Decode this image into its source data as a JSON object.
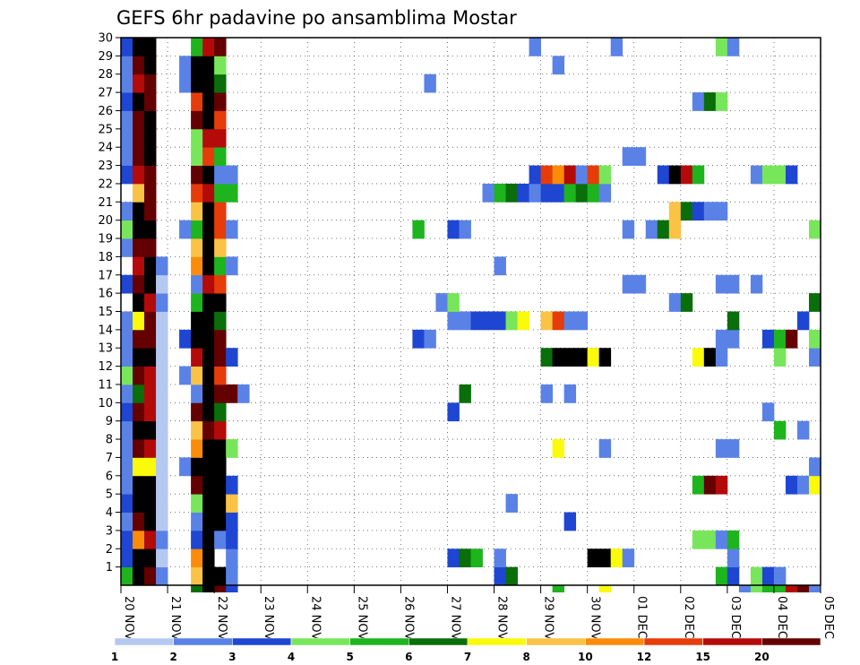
{
  "chart_data": {
    "type": "heatmap",
    "title": "GEFS 6hr padavine po ansamblima Mostar",
    "x_categories": [
      "20 NOV",
      "21 NOV",
      "22 NOV",
      "23 NOV",
      "24 NOV",
      "25 NOV",
      "26 NOV",
      "27 NOV",
      "28 NOV",
      "29 NOV",
      "30 NOV",
      "01 DEC",
      "02 DEC",
      "03 DEC",
      "04 DEC",
      "05 DEC"
    ],
    "y_ticks": [
      1,
      2,
      3,
      4,
      5,
      6,
      7,
      8,
      9,
      10,
      11,
      12,
      13,
      14,
      15,
      16,
      17,
      18,
      19,
      20,
      21,
      22,
      23,
      24,
      25,
      26,
      27,
      28,
      29,
      30
    ],
    "xlim": [
      0,
      60
    ],
    "ylim": [
      0,
      30
    ],
    "grid": true,
    "legend_position": "bottom",
    "legend": [
      {
        "label": "1",
        "color": "#b4c8f0"
      },
      {
        "label": "2",
        "color": "#5a82e6"
      },
      {
        "label": "3",
        "color": "#1e46d2"
      },
      {
        "label": "4",
        "color": "#78e65a"
      },
      {
        "label": "5",
        "color": "#1eb41e"
      },
      {
        "label": "6",
        "color": "#0a6e0a"
      },
      {
        "label": "7",
        "color": "#fafa0a"
      },
      {
        "label": "8",
        "color": "#fac346"
      },
      {
        "label": "10",
        "color": "#fa8c0a"
      },
      {
        "label": "12",
        "color": "#e63c0a"
      },
      {
        "label": "15",
        "color": "#b40a0a"
      },
      {
        "label": "20",
        "color": "#640000"
      }
    ],
    "cells": [
      [
        1,
        1,
        4
      ],
      [
        1,
        2,
        2
      ],
      [
        1,
        3,
        2
      ],
      [
        1,
        4,
        1
      ],
      [
        1,
        5,
        2
      ],
      [
        1,
        6,
        1
      ],
      [
        1,
        7,
        1
      ],
      [
        1,
        8,
        1
      ],
      [
        1,
        9,
        1
      ],
      [
        1,
        10,
        2
      ],
      [
        1,
        11,
        1
      ],
      [
        1,
        12,
        3
      ],
      [
        1,
        13,
        1
      ],
      [
        1,
        14,
        1
      ],
      [
        1,
        15,
        1
      ],
      [
        1,
        17,
        2
      ],
      [
        1,
        19,
        1
      ],
      [
        1,
        20,
        3
      ],
      [
        1,
        21,
        1
      ],
      [
        1,
        23,
        2
      ],
      [
        1,
        24,
        1
      ],
      [
        1,
        25,
        1
      ],
      [
        1,
        26,
        1
      ],
      [
        1,
        27,
        2
      ],
      [
        1,
        28,
        1
      ],
      [
        1,
        29,
        1
      ],
      [
        1,
        30,
        2
      ],
      [
        2,
        1,
        12
      ],
      [
        2,
        2,
        12
      ],
      [
        2,
        3,
        8
      ],
      [
        2,
        4,
        11
      ],
      [
        2,
        5,
        12
      ],
      [
        2,
        6,
        12
      ],
      [
        2,
        7,
        6
      ],
      [
        2,
        8,
        11
      ],
      [
        2,
        9,
        12
      ],
      [
        2,
        10,
        11
      ],
      [
        2,
        11,
        5
      ],
      [
        2,
        12,
        11
      ],
      [
        2,
        13,
        12
      ],
      [
        2,
        14,
        11
      ],
      [
        2,
        15,
        6
      ],
      [
        2,
        16,
        12
      ],
      [
        2,
        17,
        11
      ],
      [
        2,
        18,
        10
      ],
      [
        2,
        19,
        11
      ],
      [
        2,
        20,
        12
      ],
      [
        2,
        21,
        12
      ],
      [
        2,
        22,
        7
      ],
      [
        2,
        23,
        10
      ],
      [
        2,
        24,
        11
      ],
      [
        2,
        25,
        11
      ],
      [
        2,
        26,
        11
      ],
      [
        2,
        27,
        12
      ],
      [
        2,
        28,
        10
      ],
      [
        2,
        29,
        11
      ],
      [
        2,
        30,
        12
      ],
      [
        3,
        1,
        11
      ],
      [
        3,
        2,
        12
      ],
      [
        3,
        3,
        10
      ],
      [
        3,
        4,
        12
      ],
      [
        3,
        5,
        12
      ],
      [
        3,
        6,
        12
      ],
      [
        3,
        7,
        6
      ],
      [
        3,
        8,
        10
      ],
      [
        3,
        9,
        12
      ],
      [
        3,
        10,
        10
      ],
      [
        3,
        11,
        10
      ],
      [
        3,
        12,
        10
      ],
      [
        3,
        13,
        12
      ],
      [
        3,
        14,
        11
      ],
      [
        3,
        15,
        11
      ],
      [
        3,
        16,
        10
      ],
      [
        3,
        17,
        12
      ],
      [
        3,
        18,
        12
      ],
      [
        3,
        19,
        11
      ],
      [
        3,
        20,
        12
      ],
      [
        3,
        21,
        11
      ],
      [
        3,
        22,
        11
      ],
      [
        3,
        23,
        11
      ],
      [
        3,
        24,
        12
      ],
      [
        3,
        25,
        12
      ],
      [
        3,
        26,
        12
      ],
      [
        3,
        27,
        11
      ],
      [
        3,
        28,
        11
      ],
      [
        3,
        29,
        12
      ],
      [
        3,
        30,
        12
      ],
      [
        4,
        1,
        1
      ],
      [
        4,
        2,
        0
      ],
      [
        4,
        3,
        1
      ],
      [
        4,
        4,
        0
      ],
      [
        4,
        5,
        0
      ],
      [
        4,
        6,
        0
      ],
      [
        4,
        7,
        0
      ],
      [
        4,
        8,
        0
      ],
      [
        4,
        9,
        0
      ],
      [
        4,
        10,
        0
      ],
      [
        4,
        11,
        0
      ],
      [
        4,
        12,
        0
      ],
      [
        4,
        13,
        0
      ],
      [
        4,
        14,
        0
      ],
      [
        4,
        15,
        0
      ],
      [
        4,
        16,
        1
      ],
      [
        4,
        17,
        0
      ],
      [
        4,
        18,
        1
      ],
      [
        6,
        7,
        1
      ],
      [
        6,
        12,
        1
      ],
      [
        6,
        14,
        2
      ],
      [
        6,
        20,
        1
      ],
      [
        6,
        28,
        1
      ],
      [
        6,
        29,
        1
      ],
      [
        7,
        1,
        7
      ],
      [
        7,
        2,
        8
      ],
      [
        7,
        3,
        2
      ],
      [
        7,
        4,
        1
      ],
      [
        7,
        5,
        3
      ],
      [
        7,
        6,
        11
      ],
      [
        7,
        7,
        12
      ],
      [
        7,
        8,
        8
      ],
      [
        7,
        9,
        7
      ],
      [
        7,
        10,
        11
      ],
      [
        7,
        11,
        1
      ],
      [
        7,
        12,
        7
      ],
      [
        7,
        13,
        10
      ],
      [
        7,
        14,
        12
      ],
      [
        7,
        15,
        12
      ],
      [
        7,
        16,
        4
      ],
      [
        7,
        17,
        1
      ],
      [
        7,
        18,
        8
      ],
      [
        7,
        19,
        7
      ],
      [
        7,
        20,
        4
      ],
      [
        7,
        21,
        7
      ],
      [
        7,
        22,
        9
      ],
      [
        7,
        23,
        11
      ],
      [
        7,
        24,
        3
      ],
      [
        7,
        25,
        3
      ],
      [
        7,
        26,
        11
      ],
      [
        7,
        27,
        9
      ],
      [
        7,
        28,
        12
      ],
      [
        7,
        29,
        12
      ],
      [
        7,
        30,
        4
      ],
      [
        8,
        1,
        12
      ],
      [
        8,
        2,
        12
      ],
      [
        8,
        3,
        12
      ],
      [
        8,
        4,
        12
      ],
      [
        8,
        5,
        12
      ],
      [
        8,
        6,
        12
      ],
      [
        8,
        7,
        12
      ],
      [
        8,
        8,
        12
      ],
      [
        8,
        9,
        11
      ],
      [
        8,
        10,
        12
      ],
      [
        8,
        11,
        12
      ],
      [
        8,
        12,
        12
      ],
      [
        8,
        13,
        12
      ],
      [
        8,
        14,
        12
      ],
      [
        8,
        15,
        12
      ],
      [
        8,
        16,
        12
      ],
      [
        8,
        17,
        10
      ],
      [
        8,
        18,
        12
      ],
      [
        8,
        19,
        12
      ],
      [
        8,
        20,
        12
      ],
      [
        8,
        21,
        12
      ],
      [
        8,
        22,
        10
      ],
      [
        8,
        23,
        12
      ],
      [
        8,
        24,
        9
      ],
      [
        8,
        25,
        10
      ],
      [
        8,
        26,
        12
      ],
      [
        8,
        27,
        12
      ],
      [
        8,
        28,
        12
      ],
      [
        8,
        29,
        12
      ],
      [
        8,
        30,
        10
      ],
      [
        9,
        1,
        12
      ],
      [
        9,
        3,
        1
      ],
      [
        9,
        4,
        12
      ],
      [
        9,
        5,
        12
      ],
      [
        9,
        6,
        12
      ],
      [
        9,
        7,
        12
      ],
      [
        9,
        8,
        12
      ],
      [
        9,
        9,
        10
      ],
      [
        9,
        10,
        5
      ],
      [
        9,
        11,
        11
      ],
      [
        9,
        12,
        9
      ],
      [
        9,
        13,
        11
      ],
      [
        9,
        14,
        11
      ],
      [
        9,
        15,
        5
      ],
      [
        9,
        16,
        12
      ],
      [
        9,
        17,
        9
      ],
      [
        9,
        18,
        4
      ],
      [
        9,
        19,
        7
      ],
      [
        9,
        20,
        9
      ],
      [
        9,
        21,
        9
      ],
      [
        9,
        22,
        4
      ],
      [
        9,
        23,
        1
      ],
      [
        9,
        24,
        4
      ],
      [
        9,
        25,
        10
      ],
      [
        9,
        26,
        9
      ],
      [
        9,
        27,
        11
      ],
      [
        9,
        28,
        5
      ],
      [
        9,
        29,
        3
      ],
      [
        9,
        30,
        11
      ],
      [
        10,
        1,
        1
      ],
      [
        10,
        2,
        1
      ],
      [
        10,
        3,
        2
      ],
      [
        10,
        4,
        2
      ],
      [
        10,
        5,
        7
      ],
      [
        10,
        6,
        2
      ],
      [
        10,
        8,
        3
      ],
      [
        10,
        11,
        11
      ],
      [
        10,
        13,
        2
      ],
      [
        10,
        18,
        1
      ],
      [
        10,
        20,
        1
      ],
      [
        10,
        22,
        4
      ],
      [
        10,
        23,
        1
      ],
      [
        11,
        11,
        1
      ],
      [
        26,
        14,
        2
      ],
      [
        26,
        20,
        4
      ],
      [
        27,
        14,
        1
      ],
      [
        27,
        28,
        1
      ],
      [
        28,
        16,
        1
      ],
      [
        29,
        2,
        2
      ],
      [
        29,
        10,
        2
      ],
      [
        29,
        15,
        1
      ],
      [
        29,
        16,
        3
      ],
      [
        29,
        20,
        2
      ],
      [
        30,
        2,
        5
      ],
      [
        30,
        11,
        5
      ],
      [
        30,
        15,
        1
      ],
      [
        30,
        20,
        1
      ],
      [
        31,
        2,
        4
      ],
      [
        31,
        15,
        2
      ],
      [
        32,
        15,
        2
      ],
      [
        32,
        22,
        1
      ],
      [
        33,
        1,
        2
      ],
      [
        33,
        2,
        1
      ],
      [
        33,
        15,
        2
      ],
      [
        33,
        18,
        1
      ],
      [
        33,
        22,
        4
      ],
      [
        34,
        1,
        5
      ],
      [
        34,
        5,
        1
      ],
      [
        34,
        15,
        3
      ],
      [
        34,
        22,
        5
      ],
      [
        35,
        15,
        6
      ],
      [
        35,
        22,
        2
      ],
      [
        36,
        22,
        1
      ],
      [
        36,
        23,
        2
      ],
      [
        36,
        30,
        1
      ],
      [
        37,
        11,
        1
      ],
      [
        37,
        13,
        5
      ],
      [
        37,
        15,
        7
      ],
      [
        37,
        22,
        2
      ],
      [
        37,
        23,
        9
      ],
      [
        38,
        8,
        6
      ],
      [
        38,
        13,
        12
      ],
      [
        38,
        15,
        9
      ],
      [
        38,
        22,
        2
      ],
      [
        38,
        23,
        8
      ],
      [
        38,
        29,
        1
      ],
      [
        39,
        4,
        2
      ],
      [
        39,
        11,
        1
      ],
      [
        39,
        13,
        12
      ],
      [
        39,
        15,
        1
      ],
      [
        39,
        22,
        4
      ],
      [
        39,
        23,
        10
      ],
      [
        40,
        13,
        12
      ],
      [
        40,
        15,
        1
      ],
      [
        40,
        22,
        5
      ],
      [
        40,
        23,
        1
      ],
      [
        41,
        2,
        12
      ],
      [
        41,
        13,
        6
      ],
      [
        41,
        22,
        4
      ],
      [
        41,
        23,
        9
      ],
      [
        42,
        2,
        12
      ],
      [
        42,
        8,
        1
      ],
      [
        42,
        13,
        12
      ],
      [
        42,
        22,
        1
      ],
      [
        42,
        23,
        3
      ],
      [
        43,
        2,
        6
      ],
      [
        43,
        30,
        1
      ],
      [
        44,
        2,
        1
      ],
      [
        44,
        17,
        1
      ],
      [
        44,
        20,
        1
      ],
      [
        44,
        24,
        1
      ],
      [
        45,
        17,
        1
      ],
      [
        45,
        24,
        1
      ],
      [
        46,
        20,
        1
      ],
      [
        47,
        20,
        5
      ],
      [
        47,
        23,
        2
      ],
      [
        48,
        16,
        1
      ],
      [
        48,
        20,
        7
      ],
      [
        48,
        21,
        7
      ],
      [
        48,
        23,
        12
      ],
      [
        49,
        16,
        5
      ],
      [
        49,
        21,
        5
      ],
      [
        49,
        23,
        10
      ],
      [
        50,
        3,
        3
      ],
      [
        50,
        6,
        4
      ],
      [
        50,
        13,
        6
      ],
      [
        50,
        21,
        2
      ],
      [
        50,
        23,
        4
      ],
      [
        50,
        27,
        1
      ],
      [
        51,
        3,
        3
      ],
      [
        51,
        6,
        11
      ],
      [
        51,
        13,
        12
      ],
      [
        51,
        21,
        1
      ],
      [
        51,
        27,
        5
      ],
      [
        52,
        1,
        4
      ],
      [
        52,
        3,
        1
      ],
      [
        52,
        6,
        10
      ],
      [
        52,
        8,
        1
      ],
      [
        52,
        13,
        1
      ],
      [
        52,
        14,
        1
      ],
      [
        52,
        17,
        1
      ],
      [
        52,
        21,
        1
      ],
      [
        52,
        27,
        3
      ],
      [
        52,
        30,
        3
      ],
      [
        53,
        1,
        2
      ],
      [
        53,
        2,
        1
      ],
      [
        53,
        3,
        4
      ],
      [
        53,
        8,
        1
      ],
      [
        53,
        14,
        1
      ],
      [
        53,
        15,
        5
      ],
      [
        53,
        17,
        1
      ],
      [
        53,
        30,
        1
      ],
      [
        55,
        1,
        3
      ],
      [
        55,
        17,
        1
      ],
      [
        55,
        23,
        1
      ],
      [
        56,
        1,
        2
      ],
      [
        56,
        10,
        1
      ],
      [
        56,
        14,
        2
      ],
      [
        56,
        23,
        3
      ],
      [
        57,
        1,
        1
      ],
      [
        57,
        9,
        4
      ],
      [
        57,
        13,
        3
      ],
      [
        57,
        14,
        4
      ],
      [
        57,
        23,
        3
      ],
      [
        58,
        6,
        2
      ],
      [
        58,
        14,
        11
      ],
      [
        58,
        23,
        2
      ],
      [
        59,
        6,
        1
      ],
      [
        59,
        9,
        1
      ],
      [
        59,
        15,
        2
      ],
      [
        60,
        6,
        6
      ],
      [
        60,
        7,
        1
      ],
      [
        60,
        13,
        1
      ],
      [
        60,
        14,
        3
      ],
      [
        60,
        16,
        5
      ],
      [
        60,
        20,
        3
      ]
    ],
    "below_axis_strip": [
      [
        7,
        5
      ],
      [
        8,
        12
      ],
      [
        9,
        11
      ],
      [
        10,
        2
      ],
      [
        38,
        4
      ],
      [
        42,
        6
      ],
      [
        54,
        1
      ],
      [
        55,
        3
      ],
      [
        56,
        4
      ],
      [
        57,
        4
      ],
      [
        58,
        10
      ],
      [
        59,
        11
      ],
      [
        60,
        1
      ]
    ]
  }
}
